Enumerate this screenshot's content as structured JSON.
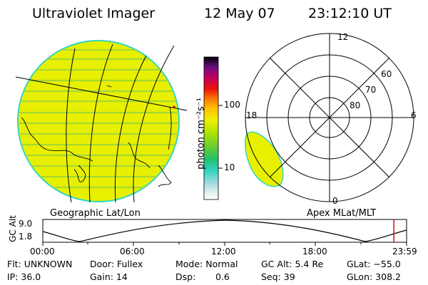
{
  "header": {
    "instrument": "Ultraviolet Imager",
    "date": "12 May 07",
    "time": "23:12:10 UT"
  },
  "colors": {
    "auroral_fill": "#e8f000",
    "border": "#33d6c2",
    "stripe": "#a6d834",
    "time_marker": "#d00000"
  },
  "colorbar": {
    "label": "photon cm⁻²s⁻¹",
    "ticks": [
      "100",
      "10"
    ],
    "scale": "log"
  },
  "left_panel": {
    "caption": "Geographic Lat/Lon"
  },
  "right_panel": {
    "caption": "Apex  MLat/MLT",
    "mlt_labels": {
      "top": "12",
      "left": "18",
      "right": "6",
      "bottom": "0"
    },
    "lat_labels": [
      "60",
      "70",
      "80"
    ]
  },
  "altitude_plot": {
    "ylabel": "GC Alt",
    "yticks": [
      "9.0",
      "1.8"
    ],
    "xticks": [
      "00:00",
      "06:00",
      "12:00",
      "18:00",
      "23:59"
    ],
    "current_time_fraction": 0.965
  },
  "status": {
    "row1": {
      "flt": "Flt: UNKNOWN",
      "door": "Door: Fullex",
      "mode": "Mode: Normal",
      "gcalt": "GC Alt: 5.4 Re",
      "glat": "GLat: −55.0"
    },
    "row2": {
      "ip": "IP: 36.0",
      "gain": "Gain: 14",
      "dsp_label": "Dsp:",
      "dsp_value": "0.6",
      "seq": "Seq: 39",
      "glon": "GLon: 308.2"
    }
  }
}
